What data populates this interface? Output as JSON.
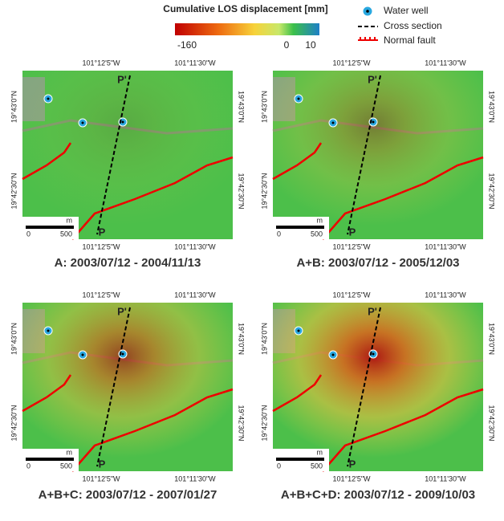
{
  "colorbar": {
    "title": "Cumulative LOS displacement [mm]",
    "ticks": [
      "-160",
      "0",
      "10"
    ]
  },
  "legend": {
    "items": [
      "Water well",
      "Cross section",
      "Normal fault"
    ]
  },
  "panels": [
    {
      "top_labels": [
        "101°12'5\"W",
        "101°11'30\"W"
      ],
      "bottom_labels": [
        "101°12'5\"W",
        "101°11'30\"W"
      ],
      "left_labels": [
        "19°43'0\"N",
        "19°42'30\"N"
      ],
      "right_labels": [
        "19°43'0\"N",
        "19°42'30\"N"
      ],
      "section_labels": [
        "P'",
        "P"
      ],
      "scale": [
        "0",
        "500",
        "m"
      ],
      "caption": "A: 2003/07/12 - 2004/11/13"
    },
    {
      "top_labels": [
        "101°12'5\"W",
        "101°11'30\"W"
      ],
      "bottom_labels": [
        "101°12'5\"W",
        "101°11'30\"W"
      ],
      "left_labels": [
        "19°43'0\"N",
        "19°42'30\"N"
      ],
      "right_labels": [
        "19°43'0\"N",
        "19°42'30\"N"
      ],
      "section_labels": [
        "P'",
        "P"
      ],
      "scale": [
        "0",
        "500",
        "m"
      ],
      "caption": "A+B: 2003/07/12 - 2005/12/03"
    },
    {
      "top_labels": [
        "101°12'5\"W",
        "101°11'30\"W"
      ],
      "bottom_labels": [
        "101°12'5\"W",
        "101°11'30\"W"
      ],
      "left_labels": [
        "19°43'0\"N",
        "19°42'30\"N"
      ],
      "right_labels": [
        "19°43'0\"N",
        "19°42'30\"N"
      ],
      "section_labels": [
        "P'",
        "P"
      ],
      "scale": [
        "0",
        "500",
        "m"
      ],
      "caption": "A+B+C: 2003/07/12 - 2007/01/27"
    },
    {
      "top_labels": [
        "101°12'5\"W",
        "101°11'30\"W"
      ],
      "bottom_labels": [
        "101°12'5\"W",
        "101°11'30\"W"
      ],
      "left_labels": [
        "19°43'0\"N",
        "19°42'30\"N"
      ],
      "right_labels": [
        "19°43'0\"N",
        "19°42'30\"N"
      ],
      "section_labels": [
        "P'",
        "P"
      ],
      "scale": [
        "0",
        "500",
        "m"
      ],
      "caption": "A+B+C+D: 2003/07/12 - 2009/10/03"
    }
  ]
}
